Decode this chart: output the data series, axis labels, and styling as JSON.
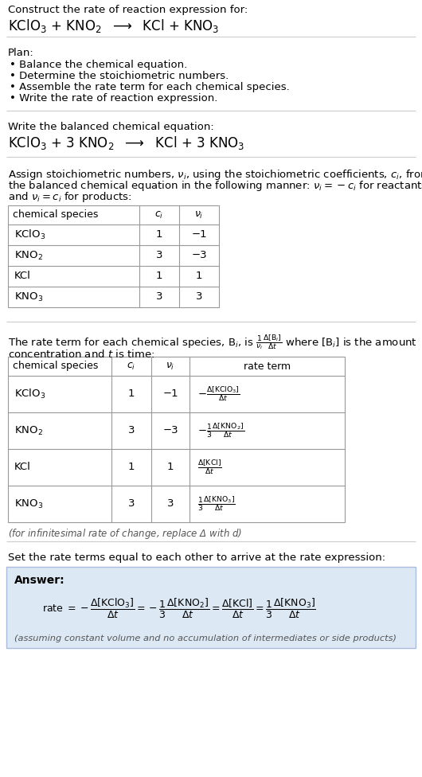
{
  "bg_color": "#ffffff",
  "title_text": "Construct the rate of reaction expression for:",
  "plan_header": "Plan:",
  "plan_items": [
    "• Balance the chemical equation.",
    "• Determine the stoichiometric numbers.",
    "• Assemble the rate term for each chemical species.",
    "• Write the rate of reaction expression."
  ],
  "balanced_header": "Write the balanced chemical equation:",
  "stoich_intro_lines": [
    "Assign stoichiometric numbers, $\\nu_i$, using the stoichiometric coefficients, $c_i$, from",
    "the balanced chemical equation in the following manner: $\\nu_i = -c_i$ for reactants",
    "and $\\nu_i = c_i$ for products:"
  ],
  "table1_headers": [
    "chemical species",
    "$c_i$",
    "$\\nu_i$"
  ],
  "table1_rows": [
    [
      "KClO$_3$",
      "1",
      "−1"
    ],
    [
      "KNO$_2$",
      "3",
      "−3"
    ],
    [
      "KCl",
      "1",
      "1"
    ],
    [
      "KNO$_3$",
      "3",
      "3"
    ]
  ],
  "rate_intro_line1": "The rate term for each chemical species, B$_i$, is $\\frac{1}{\\nu_i}\\frac{\\Delta[\\mathrm{B}_i]}{\\Delta t}$ where [B$_i$] is the amount",
  "rate_intro_line2": "concentration and $t$ is time:",
  "table2_headers": [
    "chemical species",
    "$c_i$",
    "$\\nu_i$",
    "rate term"
  ],
  "table2_rows": [
    [
      "KClO$_3$",
      "1",
      "−1",
      "$-\\frac{\\Delta[\\mathrm{KClO_3}]}{\\Delta t}$"
    ],
    [
      "KNO$_2$",
      "3",
      "−3",
      "$-\\frac{1}{3}\\frac{\\Delta[\\mathrm{KNO_2}]}{\\Delta t}$"
    ],
    [
      "KCl",
      "1",
      "1",
      "$\\frac{\\Delta[\\mathrm{KCl}]}{\\Delta t}$"
    ],
    [
      "KNO$_3$",
      "3",
      "3",
      "$\\frac{1}{3}\\frac{\\Delta[\\mathrm{KNO_3}]}{\\Delta t}$"
    ]
  ],
  "infinitesimal_note": "(for infinitesimal rate of change, replace Δ with $d$)",
  "set_equal_text": "Set the rate terms equal to each other to arrive at the rate expression:",
  "answer_box_bg": "#dce9f5",
  "answer_box_border": "#aabbdd",
  "answer_label": "Answer:",
  "answer_assuming": "(assuming constant volume and no accumulation of intermediates or side products)",
  "sep_line_color": "#cccccc",
  "table_line_color": "#999999",
  "text_color": "#000000",
  "note_color": "#555555"
}
